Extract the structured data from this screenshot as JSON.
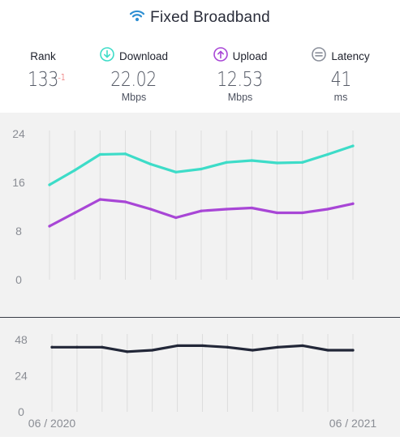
{
  "header": {
    "title": "Fixed Broadband",
    "icon": "wifi-icon"
  },
  "stats": {
    "rank": {
      "label": "Rank",
      "value": "133",
      "delta": "-1"
    },
    "download": {
      "label": "Download",
      "value": "22.02",
      "unit": "Mbps",
      "icon": "arrow-down-circle-icon"
    },
    "upload": {
      "label": "Upload",
      "value": "12.53",
      "unit": "Mbps",
      "icon": "arrow-up-circle-icon"
    },
    "latency": {
      "label": "Latency",
      "value": "41",
      "unit": "ms",
      "icon": "equals-circle-icon"
    }
  },
  "colors": {
    "download": "#3ddcc8",
    "upload": "#a846d6",
    "latency": "#222738",
    "accent": "#2e8fd3",
    "delta": "#e43b3b"
  },
  "chart_data": [
    {
      "type": "line",
      "x_labels": [
        "06 / 2020",
        "",
        "",
        "",
        "",
        "",
        "",
        "",
        "",
        "",
        "",
        "",
        "06 / 2021"
      ],
      "yticks": [
        "24",
        "16",
        "8",
        "0"
      ],
      "ylim": [
        0,
        24
      ],
      "grid": true,
      "series": [
        {
          "name": "Download",
          "values": [
            15.6,
            18.0,
            20.6,
            20.7,
            19.0,
            17.7,
            18.2,
            19.3,
            19.6,
            19.2,
            19.3,
            20.6,
            22.0
          ]
        },
        {
          "name": "Upload",
          "values": [
            8.8,
            11.0,
            13.2,
            12.8,
            11.6,
            10.2,
            11.3,
            11.6,
            11.8,
            11.0,
            11.0,
            11.6,
            12.5
          ]
        }
      ]
    },
    {
      "type": "line",
      "x_labels": [
        "06 / 2020",
        "",
        "",
        "",
        "",
        "",
        "",
        "",
        "",
        "",
        "",
        "",
        "06 / 2021"
      ],
      "yticks": [
        "48",
        "24",
        "0"
      ],
      "ylim": [
        0,
        48
      ],
      "grid": true,
      "series": [
        {
          "name": "Latency",
          "values": [
            43,
            43,
            43,
            40,
            41,
            44,
            44,
            43,
            41,
            43,
            44,
            41,
            41
          ]
        }
      ]
    }
  ]
}
